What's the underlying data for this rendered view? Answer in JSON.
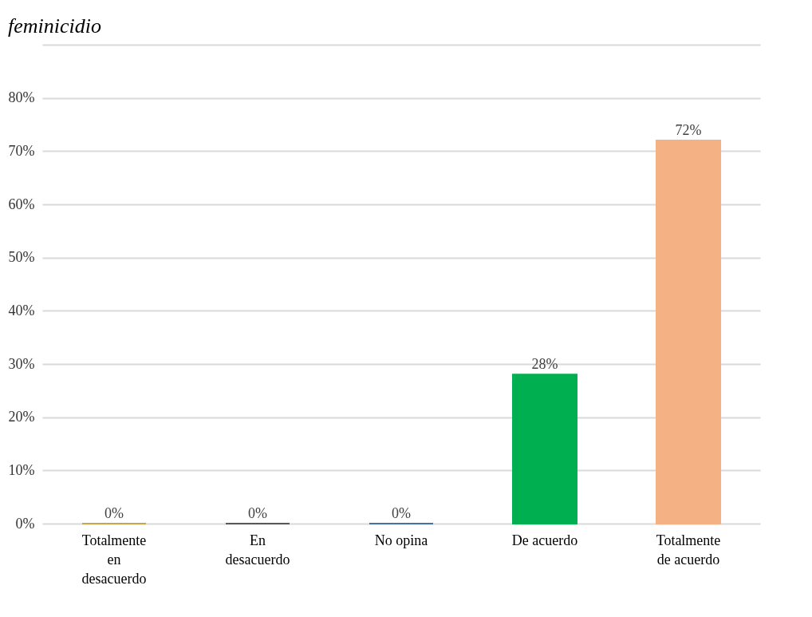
{
  "chart_data": {
    "type": "bar",
    "title": "feminicidio",
    "categories": [
      "Totalmente\nen\ndesacuerdo",
      "En\ndesacuerdo",
      "No opina",
      "De acuerdo",
      "Totalmente\nde acuerdo"
    ],
    "values": [
      0,
      0,
      0,
      28,
      72
    ],
    "colors": [
      "#c4a84e",
      "#595959",
      "#4672a0",
      "#00b050",
      "#f4b183"
    ],
    "ylim": [
      0,
      90
    ],
    "yticks": [
      {
        "value": 0,
        "label": "0%"
      },
      {
        "value": 10,
        "label": "10%"
      },
      {
        "value": 20,
        "label": "20%"
      },
      {
        "value": 30,
        "label": "30%"
      },
      {
        "value": 40,
        "label": "40%"
      },
      {
        "value": 50,
        "label": "50%"
      },
      {
        "value": 60,
        "label": "60%"
      },
      {
        "value": 70,
        "label": "70%"
      },
      {
        "value": 80,
        "label": "80%"
      },
      {
        "value": 90,
        "label": null
      }
    ],
    "value_labels": [
      "0%",
      "0%",
      "0%",
      "28%",
      "72%"
    ],
    "grid": "y"
  }
}
